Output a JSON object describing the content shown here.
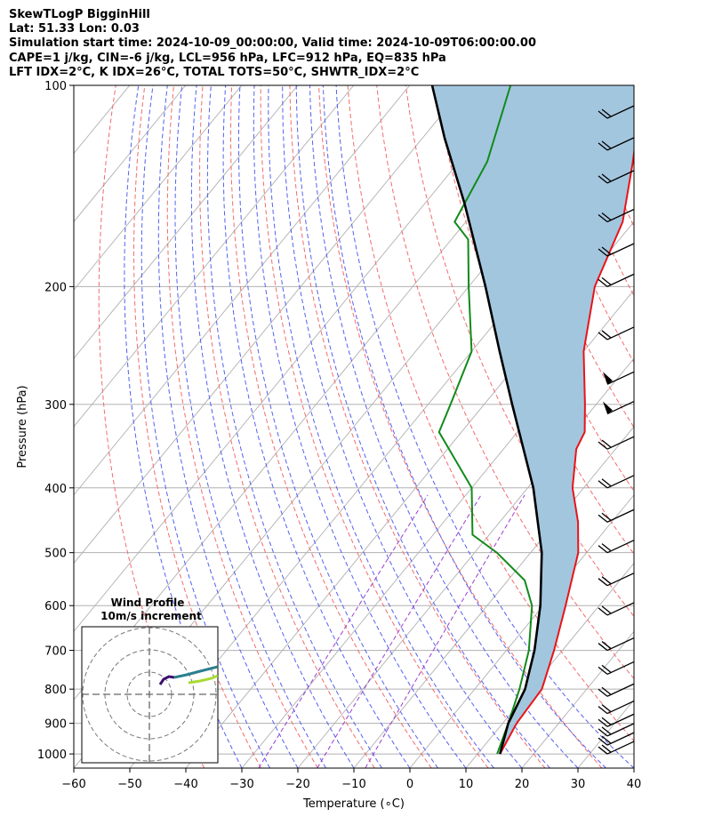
{
  "header": {
    "line1": "SkewTLogP BigginHill",
    "line2": "Lat: 51.33   Lon: 0.03",
    "line3": "Simulation start time: 2024-10-09_00:00:00, Valid time: 2024-10-09T06:00:00.00",
    "line4": "CAPE=1 j/kg, CIN=-6 j/kg, LCL=956 hPa, LFC=912 hPa, EQ=835 hPa",
    "line5": "LFT IDX=2°C, K IDX=26°C, TOTAL TOTS=50°C, SHWTR_IDX=2°C"
  },
  "chart_data": {
    "type": "line",
    "subtype": "skew-T log-P",
    "xlabel": "Temperature (∘C)",
    "ylabel": "Pressure (hPa)",
    "xlim": [
      -60,
      40
    ],
    "ylim": [
      1050,
      100
    ],
    "y_scale": "log",
    "x_ticks": [
      "−60",
      "−50",
      "−40",
      "−30",
      "−20",
      "−10",
      "0",
      "10",
      "20",
      "30",
      "40"
    ],
    "y_ticks": [
      "100",
      "200",
      "300",
      "400",
      "500",
      "600",
      "700",
      "800",
      "900",
      "1000"
    ],
    "grid": true,
    "colors": {
      "temperature": "#e8141a",
      "dewpoint": "#118a1b",
      "parcel": "#000000",
      "cape_fill": "#a3c6df",
      "dry_adiabats": "#f36b6b",
      "moist_adiabats": "#5560f0",
      "mixing_ratio": "#9a3fd0",
      "isotherms": "#b0b0b0"
    },
    "series": [
      {
        "role": "temperature",
        "points": [
          {
            "p": 1000,
            "t": 14
          },
          {
            "p": 900,
            "t": 12.5
          },
          {
            "p": 800,
            "t": 12
          },
          {
            "p": 700,
            "t": 8.5
          },
          {
            "p": 600,
            "t": 4
          },
          {
            "p": 500,
            "t": -1.5
          },
          {
            "p": 450,
            "t": -6
          },
          {
            "p": 400,
            "t": -12
          },
          {
            "p": 350,
            "t": -17
          },
          {
            "p": 330,
            "t": -18
          },
          {
            "p": 300,
            "t": -22
          },
          {
            "p": 250,
            "t": -30
          },
          {
            "p": 200,
            "t": -37.5
          },
          {
            "p": 160,
            "t": -42
          },
          {
            "p": 130,
            "t": -49
          },
          {
            "p": 110,
            "t": -55
          },
          {
            "p": 100,
            "t": -58
          }
        ]
      },
      {
        "role": "dewpoint",
        "points": [
          {
            "p": 1000,
            "t": 13.5
          },
          {
            "p": 900,
            "t": 11
          },
          {
            "p": 800,
            "t": 8
          },
          {
            "p": 700,
            "t": 4
          },
          {
            "p": 600,
            "t": -2
          },
          {
            "p": 550,
            "t": -7
          },
          {
            "p": 500,
            "t": -16
          },
          {
            "p": 470,
            "t": -23
          },
          {
            "p": 400,
            "t": -30
          },
          {
            "p": 330,
            "t": -44
          },
          {
            "p": 300,
            "t": -46
          },
          {
            "p": 250,
            "t": -50
          },
          {
            "p": 200,
            "t": -60
          },
          {
            "p": 170,
            "t": -67
          },
          {
            "p": 160,
            "t": -72
          },
          {
            "p": 130,
            "t": -75
          },
          {
            "p": 100,
            "t": -82
          }
        ]
      },
      {
        "role": "parcel",
        "points": [
          {
            "p": 1000,
            "t": 14
          },
          {
            "p": 900,
            "t": 11
          },
          {
            "p": 800,
            "t": 9
          },
          {
            "p": 700,
            "t": 5
          },
          {
            "p": 600,
            "t": -0.5
          },
          {
            "p": 500,
            "t": -8
          },
          {
            "p": 400,
            "t": -19
          },
          {
            "p": 300,
            "t": -35
          },
          {
            "p": 250,
            "t": -45
          },
          {
            "p": 200,
            "t": -57
          },
          {
            "p": 150,
            "t": -73
          },
          {
            "p": 120,
            "t": -86
          },
          {
            "p": 100,
            "t": -96
          }
        ]
      }
    ],
    "wind_barbs": [
      {
        "p": 1000
      },
      {
        "p": 970
      },
      {
        "p": 940
      },
      {
        "p": 910
      },
      {
        "p": 870
      },
      {
        "p": 820
      },
      {
        "p": 760
      },
      {
        "p": 700
      },
      {
        "p": 620
      },
      {
        "p": 560
      },
      {
        "p": 500
      },
      {
        "p": 450
      },
      {
        "p": 400
      },
      {
        "p": 350
      },
      {
        "p": 310
      },
      {
        "p": 280
      },
      {
        "p": 240
      },
      {
        "p": 200
      },
      {
        "p": 180
      },
      {
        "p": 160
      },
      {
        "p": 140
      },
      {
        "p": 125
      },
      {
        "p": 112
      }
    ],
    "inset": {
      "title": "Wind Profile",
      "subtitle": "10m/s increment",
      "rings": 3
    }
  }
}
